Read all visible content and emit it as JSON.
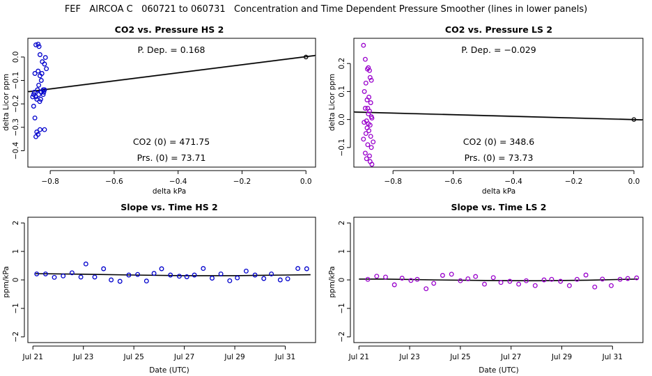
{
  "suptitle": "FEF   AIRCOA C   060721 to 060731   Concentration and Time Dependent Pressure Smoother (lines in lower panels)",
  "colors": {
    "hs": "#0000cc",
    "ls": "#9900cc",
    "line": "#000000",
    "gray": "#bbbbbb"
  },
  "chart_data": [
    {
      "id": "p1",
      "type": "scatter",
      "title": "CO2 vs. Pressure HS 2",
      "xlabel": "delta kPa",
      "ylabel": "delta Licor ppm",
      "xlim": [
        -0.87,
        0.03
      ],
      "ylim": [
        -0.47,
        0.08
      ],
      "xticks": [
        -0.8,
        -0.6,
        -0.4,
        -0.2,
        0.0
      ],
      "xtick_labels": [
        "−0.8",
        "−0.6",
        "−0.4",
        "−0.2",
        "0.0"
      ],
      "yticks": [
        -0.4,
        -0.3,
        -0.2,
        -0.1,
        0.0
      ],
      "ytick_labels": [
        "−0.4",
        "−0.3",
        "−0.2",
        "−0.1",
        "0.0"
      ],
      "color_key": "hs",
      "marker": "o",
      "annotations": [
        {
          "text": "P. Dep. =  0.168",
          "pos": "top"
        },
        {
          "text": "CO2 (0) =  471.75",
          "pos": "bottom1"
        },
        {
          "text": "Prs. (0) =  73.71",
          "pos": "bottom2"
        }
      ],
      "fit_line": [
        [
          -0.87,
          -0.148
        ],
        [
          0.03,
          0.007
        ]
      ],
      "anchor_point": [
        0.0,
        0.0
      ],
      "x": [
        -0.845,
        -0.838,
        -0.835,
        -0.832,
        -0.825,
        -0.818,
        -0.815,
        -0.838,
        -0.848,
        -0.832,
        -0.822,
        -0.84,
        -0.85,
        -0.852,
        -0.836,
        -0.828,
        -0.818,
        -0.855,
        -0.845,
        -0.842,
        -0.83,
        -0.833,
        -0.82,
        -0.812,
        -0.828,
        -0.836,
        -0.848,
        -0.842,
        -0.818,
        -0.832,
        -0.852,
        -0.822,
        -0.838,
        -0.845,
        -0.826
      ],
      "y": [
        0.052,
        0.055,
        0.045,
        0.01,
        -0.02,
        -0.03,
        -0.002,
        -0.06,
        -0.07,
        -0.08,
        -0.14,
        -0.14,
        -0.15,
        -0.16,
        -0.16,
        -0.15,
        -0.14,
        -0.17,
        -0.17,
        -0.18,
        -0.18,
        -0.19,
        -0.15,
        -0.05,
        -0.1,
        -0.12,
        -0.26,
        -0.32,
        -0.31,
        -0.31,
        -0.21,
        -0.16,
        -0.33,
        -0.34,
        -0.07
      ]
    },
    {
      "id": "p2",
      "type": "scatter",
      "title": "CO2 vs. Pressure LS 2",
      "xlabel": "delta kPa",
      "ylabel": "delta Licor ppm",
      "xlim": [
        -0.93,
        0.03
      ],
      "ylim": [
        -0.17,
        0.29
      ],
      "xticks": [
        -0.8,
        -0.6,
        -0.4,
        -0.2,
        0.0
      ],
      "xtick_labels": [
        "−0.8",
        "−0.6",
        "−0.4",
        "−0.2",
        "0.0"
      ],
      "yticks": [
        -0.1,
        0.0,
        0.1,
        0.2
      ],
      "ytick_labels": [
        "−0.1",
        "0.0",
        "0.1",
        "0.2"
      ],
      "color_key": "ls",
      "marker": "o",
      "annotations": [
        {
          "text": "P. Dep. =  −0.029",
          "pos": "top"
        },
        {
          "text": "CO2 (0) =  348.6",
          "pos": "bottom1"
        },
        {
          "text": "Prs. (0) =  73.73",
          "pos": "bottom2"
        }
      ],
      "fit_line": [
        [
          -0.93,
          0.027
        ],
        [
          0.03,
          -0.001
        ]
      ],
      "anchor_point": [
        0.0,
        0.0
      ],
      "x": [
        -0.898,
        -0.892,
        -0.885,
        -0.882,
        -0.878,
        -0.876,
        -0.872,
        -0.89,
        -0.895,
        -0.88,
        -0.874,
        -0.886,
        -0.892,
        -0.884,
        -0.878,
        -0.872,
        -0.87,
        -0.888,
        -0.896,
        -0.882,
        -0.876,
        -0.886,
        -0.88,
        -0.89,
        -0.874,
        -0.898,
        -0.866,
        -0.884,
        -0.872,
        -0.892,
        -0.878,
        -0.888,
        -0.876,
        -0.87,
        -0.882
      ],
      "y": [
        0.265,
        0.215,
        0.18,
        0.185,
        0.175,
        0.15,
        0.14,
        0.13,
        0.1,
        0.08,
        0.06,
        0.07,
        0.04,
        0.04,
        0.03,
        0.01,
        0.005,
        -0.005,
        -0.01,
        -0.015,
        -0.02,
        -0.03,
        -0.04,
        -0.05,
        -0.06,
        -0.07,
        -0.08,
        -0.09,
        -0.1,
        -0.12,
        -0.13,
        -0.14,
        -0.15,
        -0.16,
        0.02
      ]
    },
    {
      "id": "p3",
      "type": "line",
      "title": "Slope vs. Time HS 2",
      "xlabel": "Date (UTC)",
      "ylabel": "ppm/kPa",
      "xlim": [
        20.8,
        32.2
      ],
      "ylim": [
        -2.2,
        2.2
      ],
      "xticks": [
        21,
        23,
        25,
        27,
        29,
        31
      ],
      "xtick_labels": [
        "Jul 21",
        "Jul 23",
        "Jul 25",
        "Jul 27",
        "Jul 29",
        "Jul 31"
      ],
      "yticks": [
        -2,
        -1,
        0,
        1,
        2
      ],
      "ytick_labels": [
        "−2",
        "−1",
        "0",
        "1",
        "2"
      ],
      "color_key": "hs",
      "marker": "o",
      "smoother": [
        [
          21.1,
          0.22
        ],
        [
          23.0,
          0.2
        ],
        [
          25.0,
          0.17
        ],
        [
          27.0,
          0.15
        ],
        [
          29.0,
          0.15
        ],
        [
          31.0,
          0.17
        ],
        [
          32.0,
          0.18
        ]
      ],
      "x": [
        21.15,
        21.5,
        21.85,
        22.2,
        22.55,
        22.9,
        23.1,
        23.45,
        23.8,
        24.1,
        24.45,
        24.8,
        25.15,
        25.5,
        25.8,
        26.1,
        26.45,
        26.8,
        27.1,
        27.4,
        27.75,
        28.1,
        28.45,
        28.8,
        29.1,
        29.45,
        29.8,
        30.15,
        30.45,
        30.8,
        31.1,
        31.5,
        31.85
      ],
      "y": [
        0.21,
        0.21,
        0.09,
        0.14,
        0.25,
        0.1,
        0.56,
        0.1,
        0.39,
        0.0,
        -0.05,
        0.17,
        0.19,
        -0.04,
        0.23,
        0.39,
        0.17,
        0.13,
        0.11,
        0.17,
        0.4,
        0.06,
        0.21,
        -0.03,
        0.07,
        0.31,
        0.17,
        0.05,
        0.21,
        0.0,
        0.04,
        0.4,
        0.39
      ]
    },
    {
      "id": "p4",
      "type": "line",
      "title": "Slope vs. Time LS 2",
      "xlabel": "Date (UTC)",
      "ylabel": "ppm/kPa",
      "xlim": [
        20.8,
        32.2
      ],
      "ylim": [
        -2.2,
        2.2
      ],
      "xticks": [
        21,
        23,
        25,
        27,
        29,
        31
      ],
      "xtick_labels": [
        "Jul 21",
        "Jul 23",
        "Jul 25",
        "Jul 27",
        "Jul 29",
        "Jul 31"
      ],
      "yticks": [
        -2,
        -1,
        0,
        1,
        2
      ],
      "ytick_labels": [
        "−2",
        "−1",
        "0",
        "1",
        "2"
      ],
      "color_key": "ls",
      "marker": "o",
      "smoother": [
        [
          21.0,
          0.03
        ],
        [
          22.0,
          0.03
        ],
        [
          24.0,
          0.0
        ],
        [
          26.0,
          -0.02
        ],
        [
          28.0,
          -0.03
        ],
        [
          30.0,
          -0.01
        ],
        [
          32.0,
          0.03
        ]
      ],
      "x": [
        21.35,
        21.7,
        22.05,
        22.4,
        22.7,
        23.05,
        23.3,
        23.65,
        23.95,
        24.3,
        24.65,
        25.0,
        25.3,
        25.6,
        25.95,
        26.3,
        26.6,
        26.95,
        27.3,
        27.6,
        27.95,
        28.3,
        28.6,
        28.95,
        29.3,
        29.6,
        29.95,
        30.3,
        30.6,
        30.95,
        31.3,
        31.6,
        31.95
      ],
      "y": [
        0.02,
        0.13,
        0.1,
        -0.17,
        0.06,
        -0.02,
        0.02,
        -0.31,
        -0.12,
        0.16,
        0.2,
        -0.03,
        0.04,
        0.12,
        -0.15,
        0.08,
        -0.09,
        -0.05,
        -0.15,
        -0.03,
        -0.2,
        0.0,
        0.02,
        -0.05,
        -0.2,
        0.02,
        0.17,
        -0.25,
        0.03,
        -0.2,
        0.02,
        0.05,
        0.07
      ]
    }
  ]
}
